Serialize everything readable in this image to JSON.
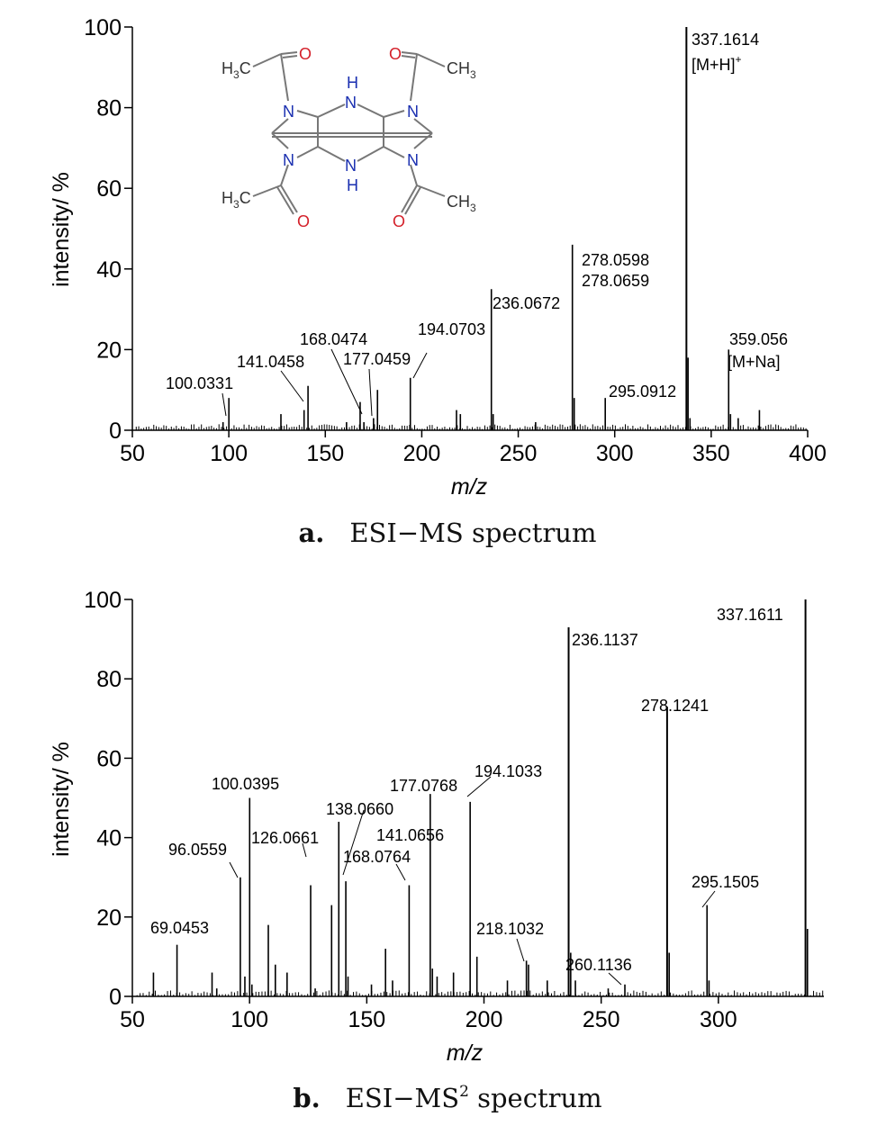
{
  "chart_data": [
    {
      "type": "bar",
      "title": "",
      "caption_letter": "a.",
      "caption_text": "ESI−MS spectrum",
      "xlabel": "m/z",
      "ylabel": "intensity/ %",
      "xlim": [
        50,
        400
      ],
      "ylim": [
        0,
        100
      ],
      "xticks": [
        50,
        100,
        150,
        200,
        250,
        300,
        350,
        400
      ],
      "yticks": [
        0,
        20,
        40,
        60,
        80,
        100
      ],
      "peaks": [
        {
          "mz": 97,
          "i": 2
        },
        {
          "mz": 100.0331,
          "i": 8,
          "label": "100.0331"
        },
        {
          "mz": 127,
          "i": 4
        },
        {
          "mz": 139,
          "i": 5
        },
        {
          "mz": 141.0458,
          "i": 11,
          "label": "141.0458"
        },
        {
          "mz": 161,
          "i": 2
        },
        {
          "mz": 168.0474,
          "i": 7,
          "label": "168.0474"
        },
        {
          "mz": 170,
          "i": 2
        },
        {
          "mz": 175,
          "i": 3
        },
        {
          "mz": 177.0459,
          "i": 10,
          "label": "177.0459"
        },
        {
          "mz": 194.0703,
          "i": 13,
          "label": "194.0703"
        },
        {
          "mz": 218,
          "i": 5
        },
        {
          "mz": 220,
          "i": 4
        },
        {
          "mz": 236.0672,
          "i": 35,
          "label": "236.0672"
        },
        {
          "mz": 237,
          "i": 4
        },
        {
          "mz": 259,
          "i": 2
        },
        {
          "mz": 278.0598,
          "i": 46,
          "label": "278.0598"
        },
        {
          "mz": 279,
          "i": 8
        },
        {
          "mz": 295.0912,
          "i": 8,
          "label": "295.0912"
        },
        {
          "mz": 337.1614,
          "i": 100,
          "label": "337.1614"
        },
        {
          "mz": 338,
          "i": 18
        },
        {
          "mz": 339,
          "i": 3
        },
        {
          "mz": 359.056,
          "i": 20,
          "label": "359.056"
        },
        {
          "mz": 360,
          "i": 4
        },
        {
          "mz": 364,
          "i": 3
        },
        {
          "mz": 375,
          "i": 5
        }
      ],
      "annotations": [
        "278.0659",
        "[M+H]",
        "[M+Na]"
      ],
      "molecule": {
        "atoms": [
          "O",
          "O",
          "O",
          "O",
          "N",
          "N",
          "N",
          "N",
          "H",
          "N",
          "N",
          "H",
          "CH",
          "CH",
          "CH",
          "CH"
        ],
        "subscripts": [
          "3",
          "3",
          "3",
          "3"
        ],
        "charge": "+"
      }
    },
    {
      "type": "bar",
      "title": "",
      "caption_letter": "b.",
      "caption_text": "ESI−MS",
      "caption_sup": "2",
      "caption_tail": " spectrum",
      "xlabel": "m/z",
      "ylabel": "intensity/ %",
      "xlim": [
        50,
        345
      ],
      "ylim": [
        0,
        100
      ],
      "xticks": [
        50,
        100,
        150,
        200,
        250,
        300
      ],
      "yticks": [
        0,
        20,
        40,
        60,
        80,
        100
      ],
      "peaks": [
        {
          "mz": 59,
          "i": 6
        },
        {
          "mz": 69.0453,
          "i": 13,
          "label": "69.0453"
        },
        {
          "mz": 84,
          "i": 6
        },
        {
          "mz": 86,
          "i": 2
        },
        {
          "mz": 96.0559,
          "i": 30,
          "label": "96.0559"
        },
        {
          "mz": 98,
          "i": 5
        },
        {
          "mz": 100.0395,
          "i": 50,
          "label": "100.0395"
        },
        {
          "mz": 101,
          "i": 3
        },
        {
          "mz": 108,
          "i": 18
        },
        {
          "mz": 111,
          "i": 8
        },
        {
          "mz": 116,
          "i": 6
        },
        {
          "mz": 126.0661,
          "i": 28,
          "label": "126.0661"
        },
        {
          "mz": 128,
          "i": 2
        },
        {
          "mz": 135,
          "i": 23
        },
        {
          "mz": 138.066,
          "i": 44,
          "label": "138.0660"
        },
        {
          "mz": 141.0656,
          "i": 29,
          "label": "141.0656"
        },
        {
          "mz": 142,
          "i": 5
        },
        {
          "mz": 152,
          "i": 3
        },
        {
          "mz": 158,
          "i": 12
        },
        {
          "mz": 161,
          "i": 4
        },
        {
          "mz": 168.0764,
          "i": 28,
          "label": "168.0764"
        },
        {
          "mz": 177.0768,
          "i": 51,
          "label": "177.0768"
        },
        {
          "mz": 178,
          "i": 7
        },
        {
          "mz": 180,
          "i": 5
        },
        {
          "mz": 187,
          "i": 6
        },
        {
          "mz": 194.1033,
          "i": 49,
          "label": "194.1033"
        },
        {
          "mz": 197,
          "i": 10
        },
        {
          "mz": 210,
          "i": 4
        },
        {
          "mz": 218.1032,
          "i": 9,
          "label": "218.1032"
        },
        {
          "mz": 219,
          "i": 8
        },
        {
          "mz": 227,
          "i": 4
        },
        {
          "mz": 236.1137,
          "i": 93,
          "label": "236.1137"
        },
        {
          "mz": 237,
          "i": 11
        },
        {
          "mz": 239,
          "i": 4
        },
        {
          "mz": 253,
          "i": 2
        },
        {
          "mz": 260.1136,
          "i": 3,
          "label": "260.1136"
        },
        {
          "mz": 278.1241,
          "i": 73,
          "label": "278.1241"
        },
        {
          "mz": 279,
          "i": 11
        },
        {
          "mz": 295.1505,
          "i": 23,
          "label": "295.1505"
        },
        {
          "mz": 296,
          "i": 4
        },
        {
          "mz": 337.1611,
          "i": 100,
          "label": "337.1611"
        },
        {
          "mz": 338,
          "i": 17
        }
      ]
    }
  ]
}
